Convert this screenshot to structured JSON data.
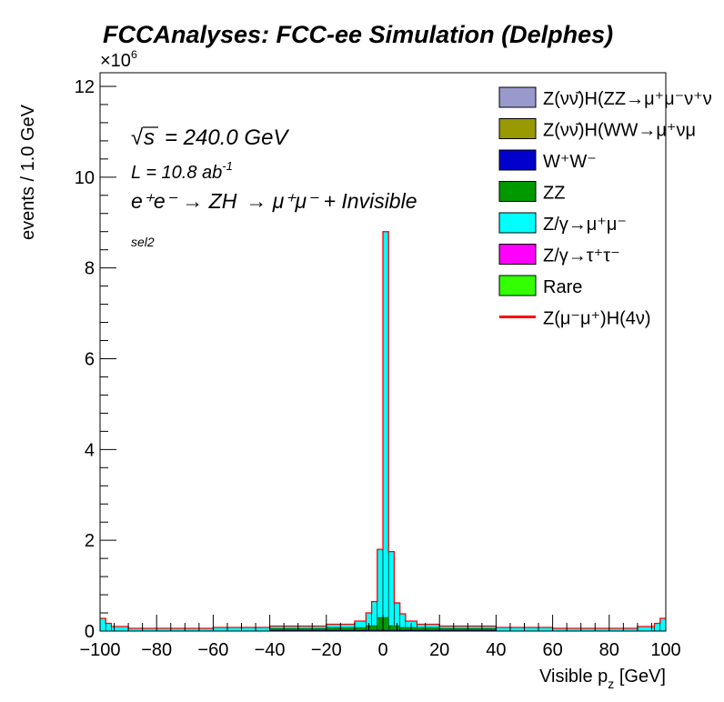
{
  "chart_data": {
    "type": "histogram",
    "stacked": true,
    "title": "FCCAnalyses: FCC-ee Simulation (Delphes)",
    "xlabel": "Visible p_z [GeV]",
    "ylabel": "events / 1.0 GeV",
    "y_multiplier": "×10^6",
    "xlim": [
      -100,
      100
    ],
    "ylim": [
      0,
      12.3
    ],
    "x_ticks": [
      "−100",
      "−80",
      "−60",
      "−40",
      "−20",
      "0",
      "20",
      "40",
      "60",
      "80",
      "100"
    ],
    "y_ticks": [
      "0",
      "2",
      "4",
      "6",
      "8",
      "10",
      "12"
    ],
    "grid": false,
    "legend_position": "top-right",
    "annotations": {
      "sqrt_s": "= 240.0 GeV",
      "lumi": "L = 10.8 ab",
      "lumi_exp": "-1",
      "process_lhs": "e⁺e⁻ → ZH",
      "process_rhs": "→ μ⁺μ⁻ + Invisible",
      "selection": "sel2"
    },
    "legend": [
      {
        "label": "Z(νν̄)H(ZZ→μ⁺μ⁻ν⁺ν",
        "style": "fill",
        "color": "#9999cc"
      },
      {
        "label": "Z(νν̄)H(WW→μ⁺νμ",
        "style": "fill",
        "color": "#999900"
      },
      {
        "label": "W⁺W⁻",
        "style": "fill",
        "color": "#0000cc"
      },
      {
        "label": "ZZ",
        "style": "fill",
        "color": "#009900"
      },
      {
        "label": "Z/γ→μ⁺μ⁻",
        "style": "fill",
        "color": "#00ffff"
      },
      {
        "label": "Z/γ→τ⁺τ⁻",
        "style": "fill",
        "color": "#ff00ff"
      },
      {
        "label": "Rare",
        "style": "fill",
        "color": "#33ff00"
      },
      {
        "label": "Z(μ⁻μ⁺)H(4ν)",
        "style": "line",
        "color": "#ff0000"
      }
    ],
    "bins": [
      {
        "x": [
          -100,
          -98
        ],
        "y": 0.28
      },
      {
        "x": [
          -98,
          -96
        ],
        "y": 0.17
      },
      {
        "x": [
          -96,
          -90
        ],
        "y": 0.1
      },
      {
        "x": [
          -90,
          -60
        ],
        "y": 0.06
      },
      {
        "x": [
          -60,
          -40
        ],
        "y": 0.08
      },
      {
        "x": [
          -40,
          -20
        ],
        "y": 0.11
      },
      {
        "x": [
          -20,
          -10
        ],
        "y": 0.15
      },
      {
        "x": [
          -10,
          -6
        ],
        "y": 0.22
      },
      {
        "x": [
          -6,
          -4
        ],
        "y": 0.4
      },
      {
        "x": [
          -4,
          -2
        ],
        "y": 0.65
      },
      {
        "x": [
          -2,
          0
        ],
        "y": 1.8
      },
      {
        "x": [
          0,
          2
        ],
        "y": 8.8
      },
      {
        "x": [
          2,
          4
        ],
        "y": 1.75
      },
      {
        "x": [
          4,
          6
        ],
        "y": 0.62
      },
      {
        "x": [
          6,
          8
        ],
        "y": 0.38
      },
      {
        "x": [
          8,
          12
        ],
        "y": 0.22
      },
      {
        "x": [
          12,
          20
        ],
        "y": 0.15
      },
      {
        "x": [
          20,
          40
        ],
        "y": 0.11
      },
      {
        "x": [
          40,
          60
        ],
        "y": 0.08
      },
      {
        "x": [
          60,
          90
        ],
        "y": 0.06
      },
      {
        "x": [
          90,
          96
        ],
        "y": 0.1
      },
      {
        "x": [
          96,
          98
        ],
        "y": 0.17
      },
      {
        "x": [
          98,
          100
        ],
        "y": 0.28
      }
    ],
    "lower_components": [
      {
        "name": "ZZ",
        "color": "#009900",
        "bins": [
          {
            "x": [
              -40,
              -20
            ],
            "y": 0.06
          },
          {
            "x": [
              -20,
              -6
            ],
            "y": 0.08
          },
          {
            "x": [
              -6,
              -2
            ],
            "y": 0.12
          },
          {
            "x": [
              -2,
              2
            ],
            "y": 0.3
          },
          {
            "x": [
              2,
              6
            ],
            "y": 0.12
          },
          {
            "x": [
              6,
              20
            ],
            "y": 0.08
          },
          {
            "x": [
              20,
              40
            ],
            "y": 0.06
          }
        ]
      },
      {
        "name": "W⁺W⁻",
        "color": "#0000cc",
        "bins": [
          {
            "x": [
              -40,
              40
            ],
            "y": 0.02
          }
        ]
      }
    ]
  }
}
